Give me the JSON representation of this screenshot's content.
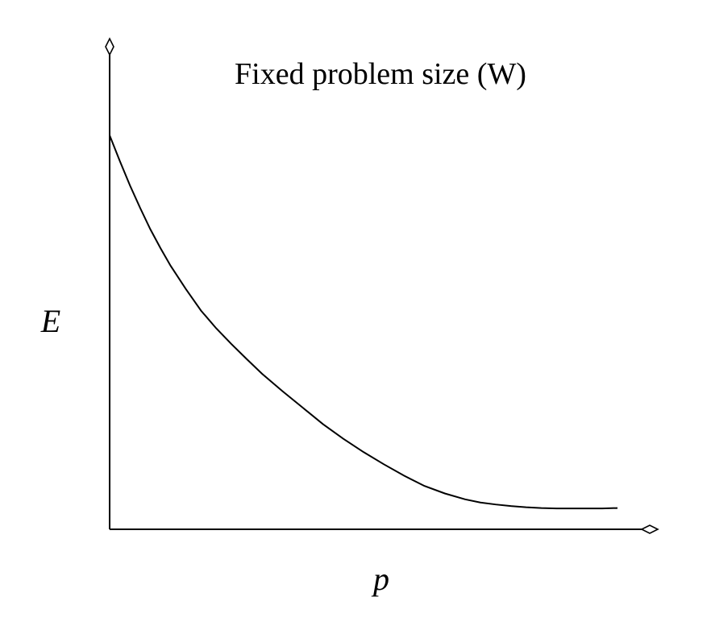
{
  "chart_data": {
    "type": "line",
    "title": "Fixed problem size (W)",
    "xlabel": "p",
    "ylabel": "E",
    "x_tick_labels": [],
    "y_tick_labels": [],
    "grid": false,
    "legend": "none",
    "xlim": [
      0,
      100
    ],
    "ylim": [
      0,
      100
    ],
    "series": [
      {
        "x": [
          0,
          2,
          4,
          6,
          8,
          10,
          12,
          15,
          18,
          21,
          24,
          27,
          30,
          34,
          38,
          42,
          46,
          50,
          54,
          58,
          62,
          66,
          70,
          73,
          76,
          79,
          82,
          85,
          88,
          91,
          94,
          97,
          100
        ],
        "y": [
          100,
          93.5,
          87.3,
          81.6,
          76.2,
          71.4,
          66.9,
          61.0,
          55.5,
          51.0,
          47.0,
          43.2,
          39.5,
          35.1,
          30.9,
          26.7,
          23.0,
          19.6,
          16.5,
          13.6,
          11.0,
          9.1,
          7.6,
          6.8,
          6.3,
          5.9,
          5.6,
          5.4,
          5.3,
          5.3,
          5.3,
          5.3,
          5.4
        ]
      }
    ],
    "colors": {
      "line": "#000000",
      "axes": "#000000",
      "background": "#ffffff"
    }
  }
}
